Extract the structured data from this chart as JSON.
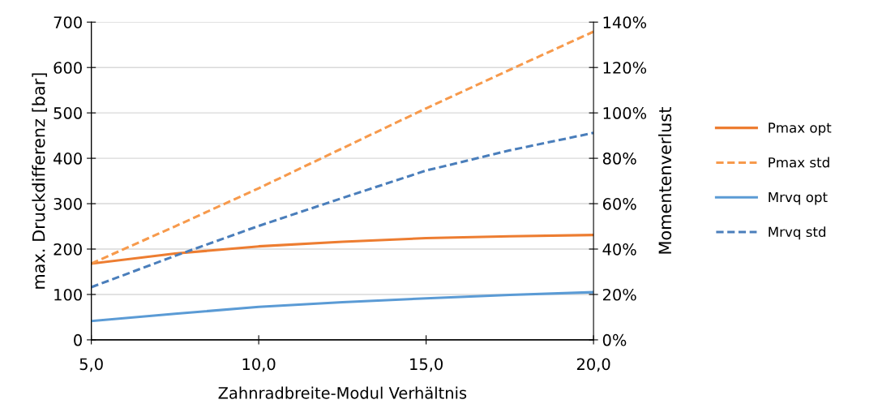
{
  "chart_data": {
    "type": "line",
    "xlabel": "Zahnradbreite-Modul Verhältnis",
    "ylabel": "max. Druckdifferenz [bar]",
    "y2label": "Momentenverlust",
    "x": [
      5,
      7.5,
      10,
      12.5,
      15,
      17.5,
      20
    ],
    "series": [
      {
        "name": "Pmax opt",
        "color": "#ed7d31",
        "line_style": "solid",
        "values": [
          168,
          190,
          206,
          216,
          224,
          228,
          231
        ]
      },
      {
        "name": "Pmax std",
        "color": "#f79a4c",
        "line_style": "dashed",
        "values": [
          168,
          250,
          334,
          422,
          510,
          595,
          679
        ]
      },
      {
        "name": "Mrvq opt",
        "color": "#5b9bd5",
        "line_style": "solid",
        "axis": "y2",
        "values": [
          8.3,
          11.5,
          14.5,
          16.6,
          18.3,
          19.8,
          21.0
        ]
      },
      {
        "name": "Mrvq std",
        "color": "#4a7ebb",
        "line_style": "dashed",
        "axis": "y2",
        "values": [
          23.2,
          37,
          50.2,
          62.5,
          74.6,
          83.5,
          91.2
        ]
      }
    ],
    "xlim": [
      5,
      20
    ],
    "xticks": [
      {
        "value": 5,
        "label": "5,0"
      },
      {
        "value": 10,
        "label": "10,0"
      },
      {
        "value": 15,
        "label": "15,0"
      },
      {
        "value": 20,
        "label": "20,0"
      }
    ],
    "ylim": [
      0,
      700
    ],
    "yticks": [
      0,
      100,
      200,
      300,
      400,
      500,
      600,
      700
    ],
    "y2lim": [
      0,
      140
    ],
    "y2ticks": [
      {
        "value": 0,
        "label": "0%"
      },
      {
        "value": 20,
        "label": "20%"
      },
      {
        "value": 40,
        "label": "40%"
      },
      {
        "value": 60,
        "label": "60%"
      },
      {
        "value": 80,
        "label": "80%"
      },
      {
        "value": 100,
        "label": "100%"
      },
      {
        "value": 120,
        "label": "120%"
      },
      {
        "value": 140,
        "label": "140%"
      }
    ],
    "grid": "y",
    "legend": "right",
    "marker": "none"
  }
}
